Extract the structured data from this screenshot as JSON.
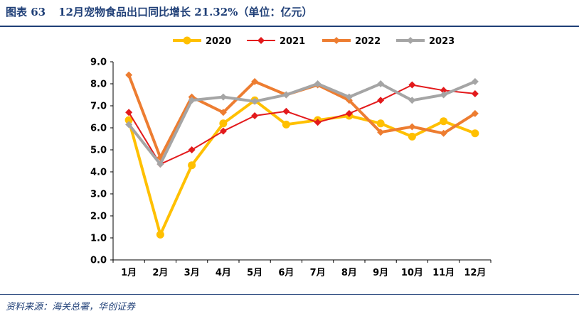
{
  "header": {
    "figure_no": "图表 63",
    "title": "12月宠物食品出口同比增长 21.32%（单位：亿元）"
  },
  "footer": {
    "source": "资料来源：海关总署，华创证券"
  },
  "chart_data": {
    "type": "line",
    "title": "12月宠物食品出口同比增长 21.32%（单位：亿元）",
    "xlabel": "",
    "ylabel": "",
    "categories": [
      "1月",
      "2月",
      "3月",
      "4月",
      "5月",
      "6月",
      "7月",
      "8月",
      "9月",
      "10月",
      "11月",
      "12月"
    ],
    "ylim": [
      0,
      9
    ],
    "yticks": [
      "0.0",
      "1.0",
      "2.0",
      "3.0",
      "4.0",
      "5.0",
      "6.0",
      "7.0",
      "8.0",
      "9.0"
    ],
    "legend_position": "top-center",
    "series": [
      {
        "name": "2020",
        "color": "#ffc000",
        "marker": "circle",
        "values": [
          6.35,
          1.15,
          4.3,
          6.2,
          7.25,
          6.15,
          6.35,
          6.55,
          6.2,
          5.6,
          6.3,
          5.75
        ]
      },
      {
        "name": "2021",
        "color": "#e31a1c",
        "marker": "diamond",
        "values": [
          6.7,
          4.35,
          5.0,
          5.85,
          6.55,
          6.75,
          6.25,
          6.65,
          7.25,
          7.95,
          7.7,
          7.55
        ]
      },
      {
        "name": "2022",
        "color": "#ed7d31",
        "marker": "diamond",
        "values": [
          8.4,
          4.65,
          7.4,
          6.7,
          8.1,
          7.5,
          7.95,
          7.25,
          5.8,
          6.05,
          5.75,
          6.65
        ]
      },
      {
        "name": "2023",
        "color": "#a5a5a5",
        "marker": "diamond",
        "values": [
          6.15,
          4.35,
          7.25,
          7.4,
          7.2,
          7.5,
          8.0,
          7.4,
          8.0,
          7.25,
          7.5,
          8.1
        ]
      }
    ]
  }
}
